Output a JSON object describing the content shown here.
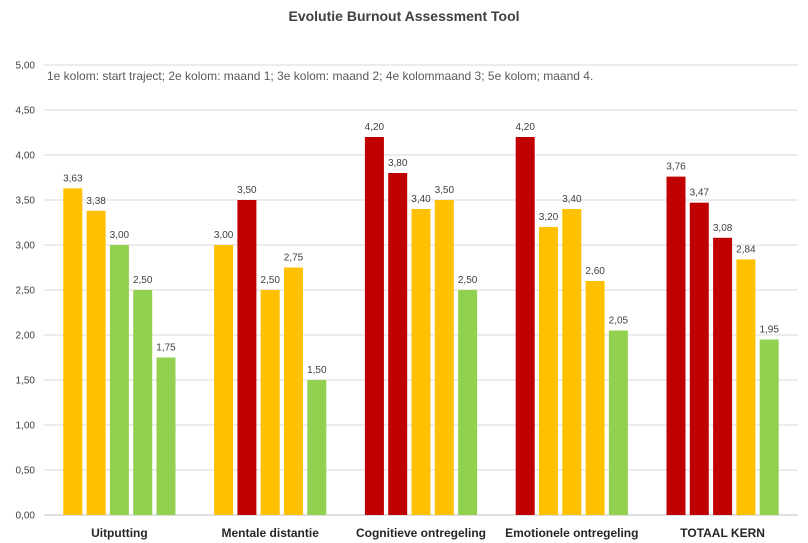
{
  "chart_data": {
    "type": "bar",
    "title": "Evolutie Burnout Assessment Tool",
    "subtitle": "1e kolom: start traject; 2e kolom: maand 1; 3e kolom: maand 2; 4e kolommaand 3; 5e kolom; maand 4.",
    "xlabel": "",
    "ylabel": "",
    "ylim": [
      0,
      5
    ],
    "ytick_step": 0.5,
    "yticks": [
      "0,00",
      "0,50",
      "1,00",
      "1,50",
      "2,00",
      "2,50",
      "3,00",
      "3,50",
      "4,00",
      "4,50",
      "5,00"
    ],
    "grid": true,
    "legend": "none",
    "categories": [
      "Uitputting",
      "Mentale distantie",
      "Cognitieve ontregeling",
      "Emotionele ontregeling",
      "TOTAAL KERN"
    ],
    "colors": {
      "red": "#C00000",
      "yellow": "#FFC000",
      "green": "#92D050"
    },
    "groups": [
      {
        "values": [
          3.63,
          3.38,
          3.0,
          2.5,
          1.75
        ],
        "labels": [
          "3,63",
          "3,38",
          "3,00",
          "2,50",
          "1,75"
        ],
        "colors": [
          "yellow",
          "yellow",
          "green",
          "green",
          "green"
        ]
      },
      {
        "values": [
          3.0,
          3.5,
          2.5,
          2.75,
          1.5
        ],
        "labels": [
          "3,00",
          "3,50",
          "2,50",
          "2,75",
          "1,50"
        ],
        "colors": [
          "yellow",
          "red",
          "yellow",
          "yellow",
          "green"
        ]
      },
      {
        "values": [
          4.2,
          3.8,
          3.4,
          3.5,
          2.5
        ],
        "labels": [
          "4,20",
          "3,80",
          "3,40",
          "3,50",
          "2,50"
        ],
        "colors": [
          "red",
          "red",
          "yellow",
          "yellow",
          "green"
        ]
      },
      {
        "values": [
          4.2,
          3.2,
          3.4,
          2.6,
          2.05
        ],
        "labels": [
          "4,20",
          "3,20",
          "3,40",
          "2,60",
          "2,05"
        ],
        "colors": [
          "red",
          "yellow",
          "yellow",
          "yellow",
          "green"
        ]
      },
      {
        "values": [
          3.76,
          3.47,
          3.08,
          2.84,
          1.95
        ],
        "labels": [
          "3,76",
          "3,47",
          "3,08",
          "2,84",
          "1,95"
        ],
        "colors": [
          "red",
          "red",
          "red",
          "yellow",
          "green"
        ]
      }
    ]
  }
}
